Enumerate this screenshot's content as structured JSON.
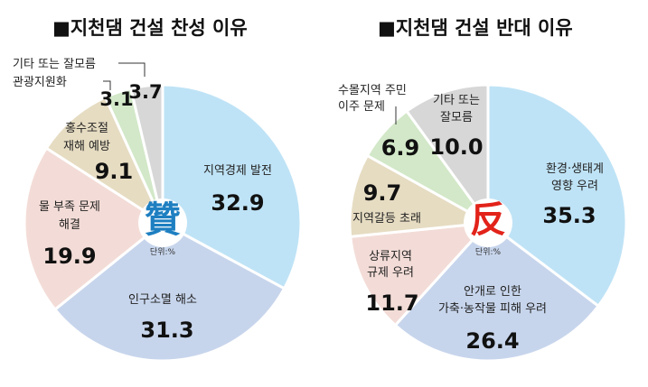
{
  "chart_data": [
    {
      "type": "pie",
      "title": "■지천댐 건설 찬성 이유",
      "center_glyph": "贊",
      "center_color": "#1e7fc1",
      "unit": "단위:%",
      "slices": [
        {
          "label": "지역경제 발전",
          "value": 32.9,
          "color": "#bfe3f6"
        },
        {
          "label": "인구소멸 해소",
          "value": 31.3,
          "color": "#c7d5ec"
        },
        {
          "label": "물 부족 문제 해결",
          "value": 19.9,
          "color": "#f3dcd7"
        },
        {
          "label": "홍수조절 재해 예방",
          "value": 9.1,
          "color": "#e6dcc2"
        },
        {
          "label": "관광지원화",
          "value": 3.1,
          "color": "#d2e8c8"
        },
        {
          "label": "기타 또는 잘모름",
          "value": 3.7,
          "color": "#d7d7d7"
        }
      ]
    },
    {
      "type": "pie",
      "title": "■지천댐 건설 반대 이유",
      "center_glyph": "反",
      "center_color": "#e2231a",
      "unit": "단위:%",
      "slices": [
        {
          "label": "환경·생태계 영향 우려",
          "value": 35.3,
          "color": "#bfe3f6"
        },
        {
          "label": "안개로 인한 가축·농작물 피해 우려",
          "value": 26.4,
          "color": "#c7d5ec"
        },
        {
          "label": "상류지역 규제 우려",
          "value": 11.7,
          "color": "#f3dcd7"
        },
        {
          "label": "지역갈등 초래",
          "value": 9.7,
          "color": "#e6dcc2"
        },
        {
          "label": "수몰지역 주민 이주 문제",
          "value": 6.9,
          "color": "#d2e8c8"
        },
        {
          "label": "기타 또는 잘모름",
          "value": 10.0,
          "color": "#d7d7d7"
        }
      ]
    }
  ]
}
